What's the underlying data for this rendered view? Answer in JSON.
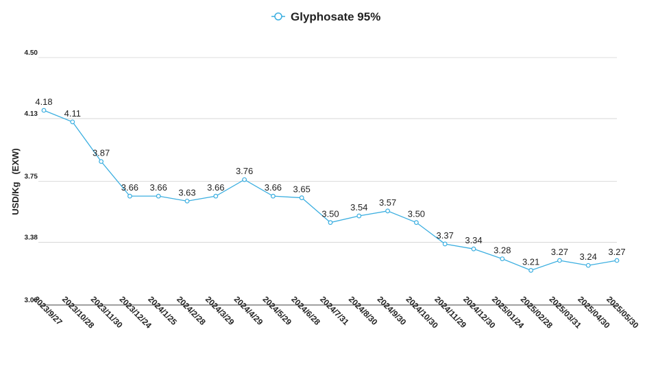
{
  "chart_data": {
    "type": "line",
    "title": "",
    "xlabel": "",
    "ylabel": "USD/Kg   (EXW)",
    "ylim": [
      3.0,
      4.5
    ],
    "y_ticks": [
      "3.00",
      "3.38",
      "3.75",
      "4.13",
      "4.50"
    ],
    "grid": "horizontal",
    "legend_position": "top-center",
    "line_color": "#3aaee0",
    "categories": [
      "2023/9/27",
      "2023/10/28",
      "2023/11/30",
      "2023/12/24",
      "2024/1/25",
      "2024/2/28",
      "2024/3/29",
      "2024/4/29",
      "2024/5/29",
      "2024/6/28",
      "2024/7/31",
      "2024/8/30",
      "2024/9/30",
      "2024/10/30",
      "2024/11/29",
      "2024/12/30",
      "2025/01/24",
      "2025/02/28",
      "2025/03/31",
      "2025/04/30",
      "2025/05/30"
    ],
    "series": [
      {
        "name": "Glyphosate 95%",
        "values": [
          4.18,
          4.11,
          3.87,
          3.66,
          3.66,
          3.63,
          3.66,
          3.76,
          3.66,
          3.65,
          3.5,
          3.54,
          3.57,
          3.5,
          3.37,
          3.34,
          3.28,
          3.21,
          3.27,
          3.24,
          3.27
        ],
        "labels": [
          "4.18",
          "4.11",
          "3.87",
          "3.66",
          "3.66",
          "3.63",
          "3.66",
          "3.76",
          "3.66",
          "3.65",
          "3.50",
          "3.54",
          "3.57",
          "3.50",
          "3.37",
          "3.34",
          "3.28",
          "3.21",
          "3.27",
          "3.24",
          "3.27"
        ]
      }
    ]
  }
}
